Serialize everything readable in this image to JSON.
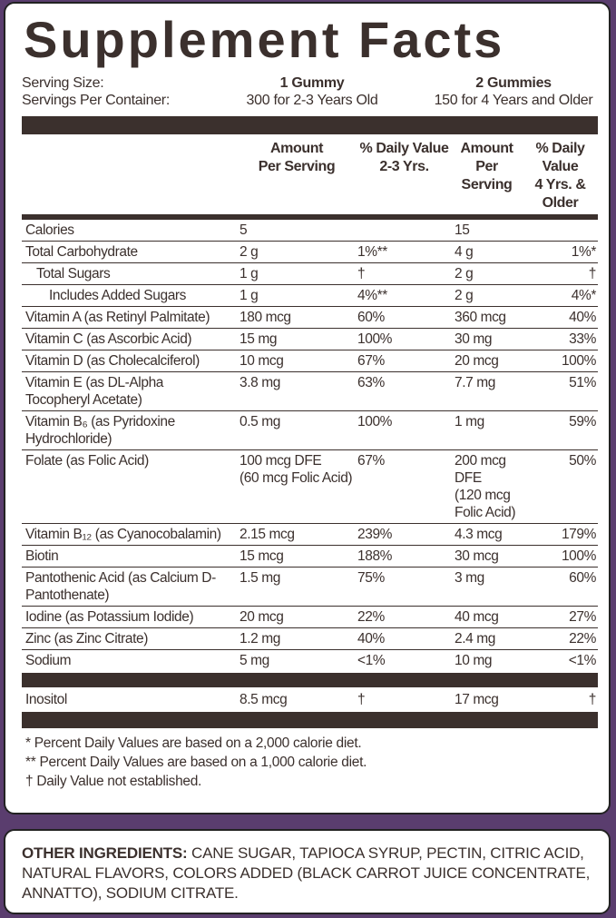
{
  "title": "Supplement Facts",
  "serving": {
    "size_label": "Serving Size:",
    "size_1": "1 Gummy",
    "size_2": "2 Gummies",
    "container_label": "Servings Per Container:",
    "container_1": "300 for 2-3 Years Old",
    "container_2": "150 for 4 Years and Older"
  },
  "table": {
    "columns": [
      [
        "Amount",
        "Per Serving"
      ],
      [
        "% Daily Value",
        "2-3 Yrs."
      ],
      [
        "Amount",
        "Per Serving"
      ],
      [
        "% Daily Value",
        "4 Yrs. & Older"
      ]
    ],
    "rows": [
      [
        "Calories",
        "5",
        "",
        "15",
        ""
      ],
      [
        "Total Carbohydrate",
        "2 g",
        "1%**",
        "4 g",
        "1%*"
      ],
      [
        "Total Sugars",
        "1 g",
        "†",
        "2 g",
        "†"
      ],
      [
        "Includes Added Sugars",
        "1 g",
        "4%**",
        "2 g",
        "4%*"
      ],
      [
        "Vitamin A (as Retinyl Palmitate)",
        "180 mcg",
        "60%",
        "360 mcg",
        "40%"
      ],
      [
        "Vitamin C (as Ascorbic Acid)",
        "15 mg",
        "100%",
        "30 mg",
        "33%"
      ],
      [
        "Vitamin D (as Cholecalciferol)",
        "10 mcg",
        "67%",
        "20 mcg",
        "100%"
      ],
      [
        "Vitamin E (as DL-Alpha Tocopheryl Acetate)",
        "3.8 mg",
        "63%",
        "7.7 mg",
        "51%"
      ],
      [
        "Vitamin B₆ (as Pyridoxine Hydrochloride)",
        "0.5 mg",
        "100%",
        "1 mg",
        "59%"
      ],
      [
        "Folate (as Folic Acid)",
        "100 mcg DFE\n(60 mcg Folic Acid)",
        "67%",
        "200 mcg DFE\n(120 mcg Folic Acid)",
        "50%"
      ],
      [
        "Vitamin B₁₂ (as Cyanocobalamin)",
        "2.15 mcg",
        "239%",
        "4.3 mcg",
        "179%"
      ],
      [
        "Biotin",
        "15 mcg",
        "188%",
        "30 mcg",
        "100%"
      ],
      [
        "Pantothenic Acid (as Calcium D-Pantothenate)",
        "1.5 mg",
        "75%",
        "3 mg",
        "60%"
      ],
      [
        "Iodine (as Potassium Iodide)",
        "20 mcg",
        "22%",
        "40 mcg",
        "27%"
      ],
      [
        "Zinc (as Zinc Citrate)",
        "1.2 mg",
        "40%",
        "2.4 mg",
        "22%"
      ],
      [
        "Sodium",
        "5 mg",
        "<1%",
        "10 mg",
        "<1%"
      ]
    ],
    "extra_rows": [
      [
        "Inositol",
        "8.5 mcg",
        "†",
        "17 mcg",
        "†"
      ]
    ]
  },
  "footnotes": [
    "* Percent Daily Values are based on a 2,000 calorie diet.",
    "** Percent Daily Values are based on a 1,000 calorie diet.",
    "† Daily Value not established."
  ],
  "other_ingredients": {
    "label": "OTHER INGREDIENTS:",
    "text": "CANE SUGAR, TAPIOCA SYRUP, PECTIN, CITRIC ACID, NATURAL FLAVORS, COLORS ADDED (BLACK CARROT JUICE CONCENTRATE, ANNATTO), SODIUM CITRATE."
  }
}
